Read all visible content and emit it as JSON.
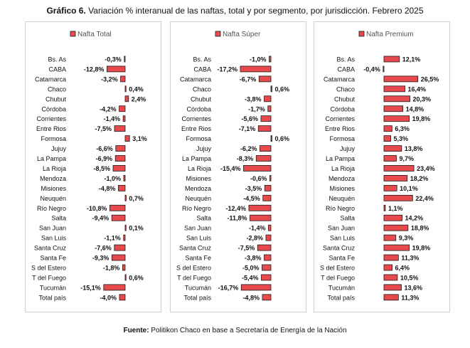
{
  "figure": {
    "title_prefix": "Gráfico 6.",
    "title_text": "Variación % interanual de las naftas, total y por segmento, por jurisdicción. Febrero 2025",
    "source_prefix": "Fuente:",
    "source_text": "Politikon Chaco en base a Secretaría de Energía de la Nación"
  },
  "colors": {
    "bar_fill": "#e8494c",
    "bar_stroke": "#1a1a1a",
    "panel_border": "#cfcfcf"
  },
  "chart_data": [
    {
      "type": "bar",
      "orientation": "horizontal",
      "title": "",
      "legend": "Nafta Total",
      "legend_position": "top",
      "grid": false,
      "categories": [
        "Bs. As",
        "CABA",
        "Catamarca",
        "Chaco",
        "Chubut",
        "Córdoba",
        "Corrientes",
        "Entre Rios",
        "Formosa",
        "Jujuy",
        "La Pampa",
        "La Rioja",
        "Mendoza",
        "Misiones",
        "Neuquén",
        "Río Negro",
        "Salta",
        "San Juan",
        "San Luis",
        "Santa Cruz",
        "Santa Fe",
        "S del Estero",
        "T del Fuego",
        "Tucumán",
        "Total país"
      ],
      "values": [
        -0.3,
        -12.8,
        -3.2,
        0.4,
        2.4,
        -4.2,
        -1.4,
        -7.5,
        3.1,
        -6.6,
        -6.9,
        -8.5,
        -1.0,
        -4.8,
        0.7,
        -10.8,
        -9.4,
        0.1,
        -1.1,
        -7.6,
        -9.3,
        -1.8,
        0.6,
        -15.1,
        -4.0
      ],
      "labels": [
        "-0,3%",
        "-12,8%",
        "-3,2%",
        "0,4%",
        "2,4%",
        "-4,2%",
        "-1,4%",
        "-7,5%",
        "3,1%",
        "-6,6%",
        "-6,9%",
        "-8,5%",
        "-1,0%",
        "-4,8%",
        "0,7%",
        "-10,8%",
        "-9,4%",
        "0,1%",
        "-1,1%",
        "-7,6%",
        "-9,3%",
        "-1,8%",
        "0,6%",
        "-15,1%",
        "-4,0%"
      ],
      "xlim": [
        -15.1,
        3.1
      ]
    },
    {
      "type": "bar",
      "orientation": "horizontal",
      "title": "",
      "legend": "Nafta Súper",
      "legend_position": "top",
      "grid": false,
      "categories": [
        "Bs. As",
        "CABA",
        "Catamarca",
        "Chaco",
        "Chubut",
        "Córdoba",
        "Corrientes",
        "Entre Rios",
        "Formosa",
        "Jujuy",
        "La Pampa",
        "La Rioja",
        "Misiones",
        "Mendoza",
        "Neuquén",
        "Río Negro",
        "Salta",
        "San Juan",
        "San Luis",
        "Santa Cruz",
        "Santa Fe",
        "S del Estero",
        "T del Fuego",
        "Tucumán",
        "Total país"
      ],
      "values": [
        -1.0,
        -17.2,
        -6.7,
        0.6,
        -3.8,
        -1.7,
        -5.6,
        -7.1,
        0.6,
        -6.2,
        -8.3,
        -15.4,
        -0.6,
        -3.5,
        -4.5,
        -12.4,
        -11.8,
        -1.4,
        -2.8,
        -7.5,
        -3.8,
        -5.0,
        -5.4,
        -16.7,
        -4.8
      ],
      "labels": [
        "-1,0%",
        "-17,2%",
        "-6,7%",
        "0,6%",
        "-3,8%",
        "-1,7%",
        "-5,6%",
        "-7,1%",
        "0,6%",
        "-6,2%",
        "-8,3%",
        "-15,4%",
        "-0,6%",
        "-3,5%",
        "-4,5%",
        "-12,4%",
        "-11,8%",
        "-1,4%",
        "-2,8%",
        "-7,5%",
        "-3,8%",
        "-5,0%",
        "-5,4%",
        "-16,7%",
        "-4,8%"
      ],
      "xlim": [
        -17.2,
        0.6
      ]
    },
    {
      "type": "bar",
      "orientation": "horizontal",
      "title": "",
      "legend": "Nafta Premium",
      "legend_position": "top",
      "grid": false,
      "categories": [
        "Bs. As",
        "CABA",
        "Catamarca",
        "Chaco",
        "Chubut",
        "Córdoba",
        "Corrientes",
        "Entre Rios",
        "Formosa",
        "Jujuy",
        "La Pampa",
        "La Rioja",
        "Mendoza",
        "Misiones",
        "Neuquén",
        "Río Negro",
        "Salta",
        "San Juan",
        "San Luis",
        "Santa Cruz",
        "Santa Fe",
        "S del Estero",
        "T del Fuego",
        "Tucumán",
        "Total país"
      ],
      "values": [
        12.1,
        -0.4,
        26.5,
        16.4,
        20.3,
        14.8,
        19.8,
        6.3,
        5.3,
        13.8,
        9.7,
        23.4,
        18.2,
        10.1,
        22.4,
        1.1,
        14.2,
        18.8,
        9.3,
        19.8,
        11.3,
        6.4,
        10.5,
        13.6,
        11.3
      ],
      "labels": [
        "12,1%",
        "-0,4%",
        "26,5%",
        "16,4%",
        "20,3%",
        "14,8%",
        "19,8%",
        "6,3%",
        "5,3%",
        "13,8%",
        "9,7%",
        "23,4%",
        "18,2%",
        "10,1%",
        "22,4%",
        "1,1%",
        "14,2%",
        "18,8%",
        "9,3%",
        "19,8%",
        "11,3%",
        "6,4%",
        "10,5%",
        "13,6%",
        "11,3%"
      ],
      "xlim": [
        -0.4,
        26.5
      ]
    }
  ]
}
